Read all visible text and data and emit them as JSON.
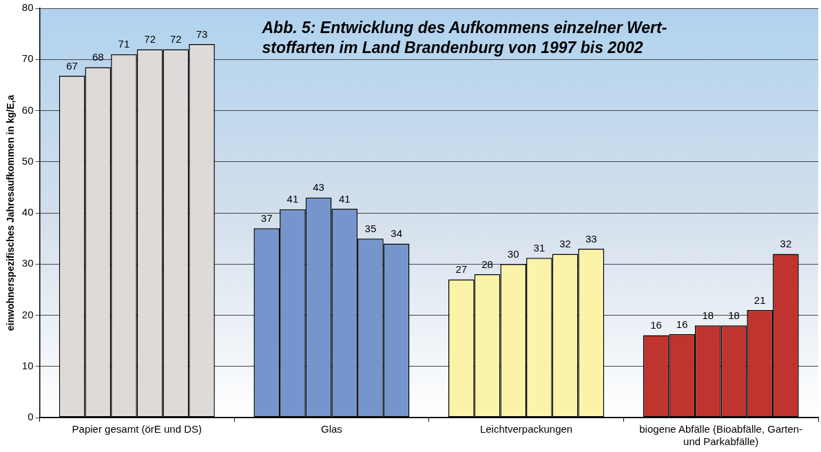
{
  "chart_data": {
    "type": "bar",
    "title": "Abb. 5: Entwicklung des Aufkommens einzelner Wert-\nstoffarten im Land Brandenburg von 1997 bis 2002",
    "ylabel": "einwohnerspezifisches Jahresaufkommen in kg/E,a",
    "categories": [
      "Papier gesamt (örE und DS)",
      "Glas",
      "Leichtverpackungen",
      "biogene Abfälle (Bioabfälle, Garten-\nund Parkabfälle)"
    ],
    "series": [
      {
        "colors": [
          "#dedad8",
          "#7595cc",
          "#fbf3a8",
          "#c0342f"
        ],
        "values": [
          66.8,
          37,
          27,
          16.1
        ],
        "value_labels": [
          "67",
          "37",
          "27",
          "16"
        ]
      },
      {
        "colors": [
          "#dedad8",
          "#7595cc",
          "#fbf3a8",
          "#c0342f"
        ],
        "values": [
          68.5,
          40.7,
          28,
          16.3
        ],
        "value_labels": [
          "68",
          "41",
          "28",
          "16"
        ]
      },
      {
        "colors": [
          "#dedad8",
          "#7595cc",
          "#fbf3a8",
          "#c0342f"
        ],
        "values": [
          71,
          43,
          30,
          18
        ],
        "value_labels": [
          "71",
          "43",
          "30",
          "18"
        ]
      },
      {
        "colors": [
          "#dedad8",
          "#7595cc",
          "#fbf3a8",
          "#c0342f"
        ],
        "values": [
          72,
          40.8,
          31.2,
          18
        ],
        "value_labels": [
          "72",
          "41",
          "31",
          "18"
        ]
      },
      {
        "colors": [
          "#dedad8",
          "#7595cc",
          "#fbf3a8",
          "#c0342f"
        ],
        "values": [
          72,
          35,
          32,
          21
        ],
        "value_labels": [
          "72",
          "35",
          "32",
          "21"
        ]
      },
      {
        "colors": [
          "#dedad8",
          "#7595cc",
          "#fbf3a8",
          "#c0342f"
        ],
        "values": [
          73,
          34,
          33,
          32
        ],
        "value_labels": [
          "73",
          "34",
          "33",
          "32"
        ]
      }
    ],
    "ylim": [
      0,
      80
    ],
    "yticks": [
      0,
      10,
      20,
      30,
      40,
      50,
      60,
      70,
      80
    ],
    "grid": "y",
    "legend": false
  }
}
